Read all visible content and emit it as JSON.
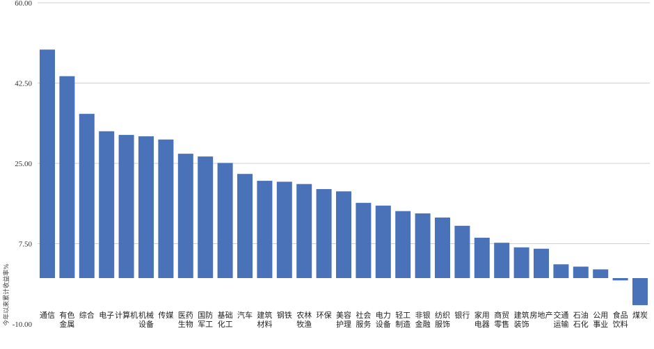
{
  "chart_data": {
    "type": "bar",
    "ylabel": "今年以来累计收益率%",
    "ylim": [
      -10,
      60
    ],
    "yticks": [
      -10,
      7.5,
      25,
      42.5,
      60
    ],
    "ytick_labels": [
      "-10.00",
      "7.50",
      "25.00",
      "42.50",
      "60.00"
    ],
    "grid": true,
    "categories": [
      [
        "通信"
      ],
      [
        "有色",
        "金属"
      ],
      [
        "综合"
      ],
      [
        "电子"
      ],
      [
        "计算机"
      ],
      [
        "机械",
        "设备"
      ],
      [
        "传媒"
      ],
      [
        "医药",
        "生物"
      ],
      [
        "国防",
        "军工"
      ],
      [
        "基础",
        "化工"
      ],
      [
        "汽车"
      ],
      [
        "建筑",
        "材料"
      ],
      [
        "钢铁"
      ],
      [
        "农林",
        "牧渔"
      ],
      [
        "环保"
      ],
      [
        "美容",
        "护理"
      ],
      [
        "社会",
        "服务"
      ],
      [
        "电力",
        "设备"
      ],
      [
        "轻工",
        "制造"
      ],
      [
        "非银",
        "金融"
      ],
      [
        "纺织",
        "服饰"
      ],
      [
        "银行"
      ],
      [
        "家用",
        "电器"
      ],
      [
        "商贸",
        "零售"
      ],
      [
        "建筑",
        "装饰"
      ],
      [
        "房地产"
      ],
      [
        "交通",
        "运输"
      ],
      [
        "石油",
        "石化"
      ],
      [
        "公用",
        "事业"
      ],
      [
        "食品",
        "饮料"
      ],
      [
        "煤炭"
      ]
    ],
    "values": [
      49.8,
      44.0,
      35.8,
      32.0,
      31.2,
      30.9,
      30.2,
      27.1,
      26.5,
      25.1,
      22.7,
      21.2,
      21.0,
      20.5,
      19.4,
      18.9,
      16.4,
      15.8,
      14.6,
      14.1,
      13.2,
      11.4,
      8.8,
      7.7,
      6.7,
      6.4,
      3.0,
      2.5,
      1.9,
      -0.5,
      -5.9
    ]
  }
}
